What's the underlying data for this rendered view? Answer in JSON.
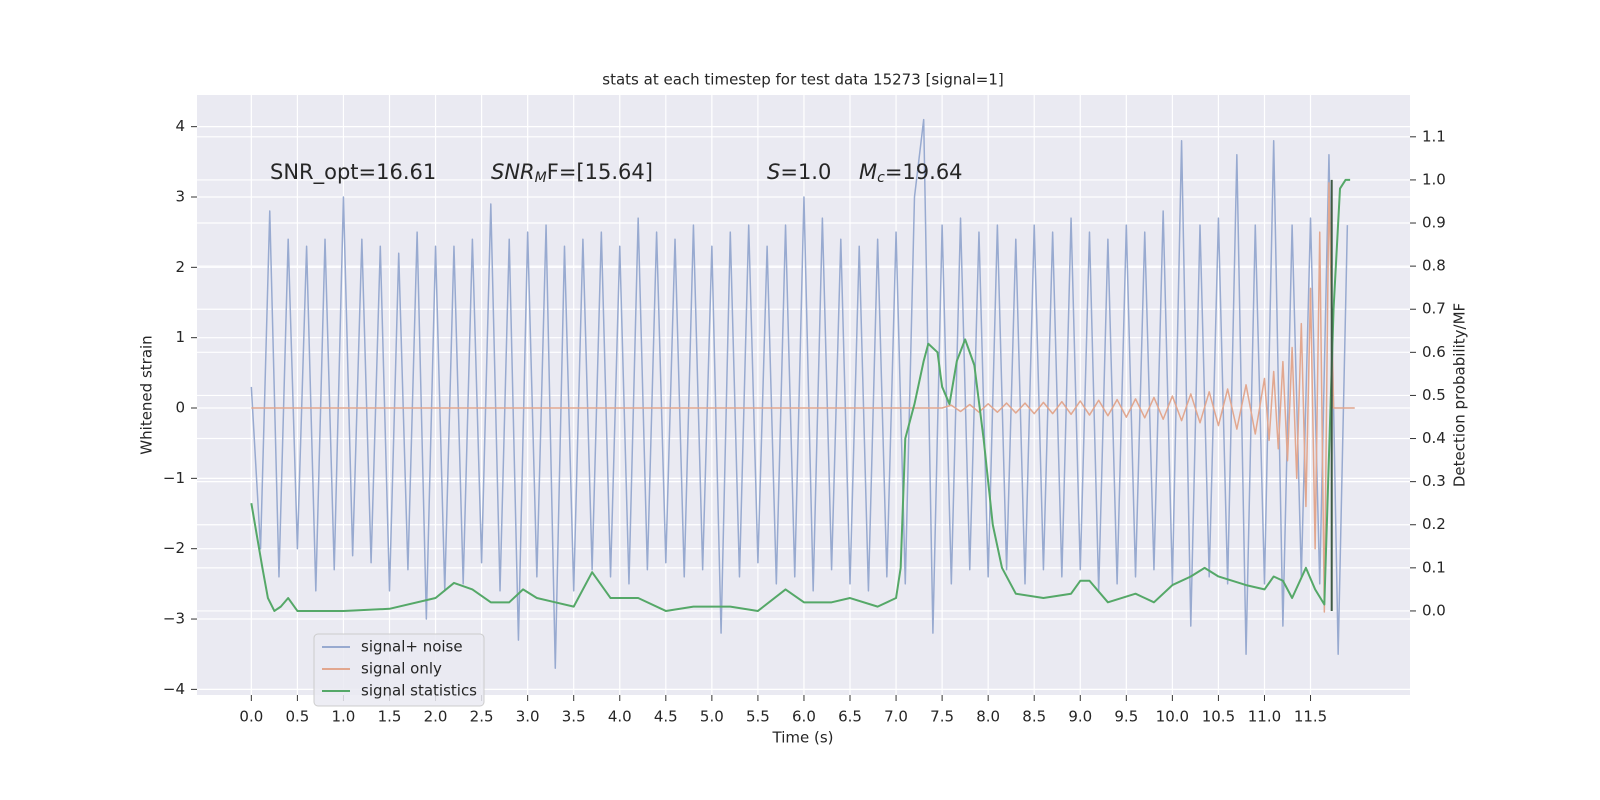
{
  "chart_data": {
    "type": "line",
    "title": "stats at each timestep for test data 15273 [signal=1]",
    "xlabel": "Time (s)",
    "ylabel": "Whitened strain",
    "y2label": "Detection probability/MF",
    "xlim": [
      -0.59,
      12.58
    ],
    "ylim": [
      -4.08,
      4.45
    ],
    "y2lim": [
      -0.195,
      1.197
    ],
    "xticks": [
      {
        "value": 0,
        "label": "0.0"
      },
      0.5,
      {
        "value": 1,
        "label": "1.0"
      },
      1.5,
      {
        "value": 2,
        "label": "2.0"
      },
      2.5,
      {
        "value": 3,
        "label": "3.0"
      },
      3.5,
      {
        "value": 4,
        "label": "4.0"
      },
      4.5,
      {
        "value": 5,
        "label": "5.0"
      },
      5.5,
      {
        "value": 6,
        "label": "6.0"
      },
      6.5,
      {
        "value": 7,
        "label": "7.0"
      },
      7.5,
      {
        "value": 8,
        "label": "8.0"
      },
      8.5,
      {
        "value": 9,
        "label": "9.0"
      },
      9.5,
      {
        "value": 10,
        "label": "10.0"
      },
      10.5,
      {
        "value": 11,
        "label": "11.0"
      },
      11.5
    ],
    "yticks": [
      {
        "value": -4,
        "label": "−4"
      },
      {
        "value": -3,
        "label": "−3"
      },
      {
        "value": -2,
        "label": "−2"
      },
      {
        "value": -1,
        "label": "−1"
      },
      0,
      1,
      2,
      3,
      4
    ],
    "y2ticks": [
      {
        "value": 0,
        "label": "0.0"
      },
      0.1,
      0.2,
      0.3,
      0.4,
      0.5,
      0.6,
      0.7,
      0.8,
      0.9,
      {
        "value": 1,
        "label": "1.0"
      },
      1.1
    ],
    "grid": true,
    "legend": "lower left",
    "annotations": [
      {
        "text": "SNR_opt=16.61"
      },
      {
        "symbol": "SNR",
        "sub": "M",
        "rest": "F=[15.64]"
      },
      {
        "symbol": "S",
        "rest": "=1.0"
      },
      {
        "symbol": "M",
        "sub": "c",
        "rest": "=19.64"
      }
    ],
    "series": [
      {
        "name": "signal+ noise",
        "color": "#98aad0",
        "x": [
          0,
          0.1,
          0.2,
          0.3,
          0.4,
          0.5,
          0.6,
          0.7,
          0.8,
          0.9,
          1,
          1.1,
          1.2,
          1.3,
          1.4,
          1.5,
          1.6,
          1.7,
          1.8,
          1.9,
          2,
          2.1,
          2.2,
          2.3,
          2.4,
          2.5,
          2.6,
          2.7,
          2.8,
          2.9,
          3,
          3.1,
          3.2,
          3.3,
          3.4,
          3.5,
          3.6,
          3.7,
          3.8,
          3.9,
          4,
          4.1,
          4.2,
          4.3,
          4.4,
          4.5,
          4.6,
          4.7,
          4.8,
          4.9,
          5,
          5.1,
          5.2,
          5.3,
          5.4,
          5.5,
          5.6,
          5.7,
          5.8,
          5.9,
          6,
          6.1,
          6.2,
          6.3,
          6.4,
          6.5,
          6.6,
          6.7,
          6.8,
          6.9,
          7,
          7.1,
          7.2,
          7.3,
          7.4,
          7.5,
          7.6,
          7.7,
          7.8,
          7.9,
          8,
          8.1,
          8.2,
          8.3,
          8.4,
          8.5,
          8.6,
          8.7,
          8.8,
          8.9,
          9,
          9.1,
          9.2,
          9.3,
          9.4,
          9.5,
          9.6,
          9.7,
          9.8,
          9.9,
          10,
          10.1,
          10.2,
          10.3,
          10.4,
          10.5,
          10.6,
          10.7,
          10.8,
          10.9,
          11,
          11.1,
          11.2,
          11.3,
          11.4,
          11.5,
          11.6,
          11.7,
          11.8,
          11.9
        ],
        "values": [
          0.3,
          -2.0,
          2.8,
          -2.4,
          2.4,
          -2.0,
          2.3,
          -2.6,
          2.4,
          -2.3,
          3.0,
          -2.1,
          2.4,
          -2.2,
          2.3,
          -2.6,
          2.2,
          -2.3,
          2.5,
          -3.0,
          2.3,
          -2.6,
          2.3,
          -2.5,
          2.4,
          -2.2,
          2.9,
          -2.6,
          2.4,
          -3.3,
          2.5,
          -2.4,
          2.6,
          -3.7,
          2.3,
          -2.6,
          2.4,
          -2.3,
          2.5,
          -2.4,
          2.3,
          -2.5,
          2.7,
          -2.3,
          2.5,
          -2.2,
          2.4,
          -2.4,
          2.6,
          -2.3,
          2.3,
          -3.2,
          2.5,
          -2.4,
          2.6,
          -2.2,
          2.3,
          -2.5,
          2.6,
          -2.4,
          3.0,
          -2.6,
          2.7,
          -2.3,
          2.4,
          -2.5,
          2.3,
          -2.6,
          2.4,
          -2.4,
          2.5,
          -2.5,
          3.0,
          4.1,
          -3.2,
          2.6,
          -2.5,
          2.7,
          -2.3,
          2.5,
          -2.4,
          2.6,
          -2.3,
          2.4,
          -2.5,
          2.6,
          -2.3,
          2.5,
          -2.4,
          2.7,
          -2.3,
          2.5,
          -2.6,
          2.4,
          -2.5,
          2.6,
          -2.4,
          2.5,
          -2.3,
          2.8,
          -2.5,
          3.8,
          -3.1,
          2.6,
          -2.4,
          2.7,
          -2.5,
          3.6,
          -3.5,
          2.6,
          -2.5,
          3.8,
          -3.1,
          2.6,
          -2.4,
          2.7,
          -2.5,
          3.6,
          -3.5,
          2.6
        ]
      },
      {
        "name": "signal only",
        "color": "#e2a78f",
        "x": [
          0,
          7.5,
          7.6,
          7.7,
          7.8,
          7.9,
          8,
          8.1,
          8.2,
          8.3,
          8.4,
          8.5,
          8.6,
          8.7,
          8.8,
          8.9,
          9,
          9.1,
          9.2,
          9.3,
          9.4,
          9.5,
          9.6,
          9.7,
          9.8,
          9.9,
          10,
          10.1,
          10.2,
          10.3,
          10.4,
          10.5,
          10.6,
          10.7,
          10.8,
          10.9,
          11,
          11.05,
          11.1,
          11.15,
          11.2,
          11.25,
          11.3,
          11.35,
          11.4,
          11.45,
          11.5,
          11.55,
          11.6,
          11.65,
          11.7,
          11.75,
          11.98
        ],
        "values": [
          0,
          0,
          0.04,
          -0.05,
          0.05,
          -0.06,
          0.06,
          -0.06,
          0.07,
          -0.07,
          0.07,
          -0.08,
          0.08,
          -0.08,
          0.09,
          -0.09,
          0.1,
          -0.1,
          0.11,
          -0.11,
          0.12,
          -0.13,
          0.13,
          -0.14,
          0.15,
          -0.16,
          0.17,
          -0.18,
          0.2,
          -0.21,
          0.23,
          -0.25,
          0.27,
          -0.3,
          0.33,
          -0.37,
          0.42,
          -0.46,
          0.52,
          -0.58,
          0.66,
          -0.75,
          0.86,
          -1.0,
          1.2,
          -1.4,
          1.7,
          -2.0,
          2.5,
          -2.9,
          3.2,
          0,
          0
        ]
      },
      {
        "name": "signal statistics",
        "color": "#55a868",
        "axis": "y2",
        "x": [
          0,
          0.12,
          0.18,
          0.25,
          0.32,
          0.4,
          0.5,
          0.6,
          1.0,
          1.5,
          2.0,
          2.2,
          2.4,
          2.6,
          2.8,
          2.95,
          3.1,
          3.3,
          3.5,
          3.7,
          3.9,
          4.2,
          4.5,
          4.8,
          5.2,
          5.5,
          5.8,
          6.0,
          6.3,
          6.5,
          6.8,
          7.0,
          7.05,
          7.1,
          7.2,
          7.3,
          7.35,
          7.45,
          7.5,
          7.58,
          7.66,
          7.75,
          7.85,
          7.95,
          8.05,
          8.15,
          8.3,
          8.6,
          8.9,
          9.0,
          9.1,
          9.3,
          9.6,
          9.8,
          10.0,
          10.2,
          10.35,
          10.5,
          10.8,
          11.0,
          11.1,
          11.2,
          11.3,
          11.45,
          11.55,
          11.65,
          11.75,
          11.82,
          11.88,
          11.93
        ],
        "values": [
          0.25,
          0.1,
          0.03,
          0.0,
          0.01,
          0.03,
          0.0,
          0.0,
          0.0,
          0.005,
          0.03,
          0.065,
          0.05,
          0.02,
          0.02,
          0.05,
          0.03,
          0.02,
          0.01,
          0.09,
          0.03,
          0.03,
          0.0,
          0.01,
          0.01,
          0.0,
          0.05,
          0.02,
          0.02,
          0.03,
          0.01,
          0.03,
          0.1,
          0.4,
          0.48,
          0.58,
          0.62,
          0.6,
          0.52,
          0.48,
          0.58,
          0.63,
          0.57,
          0.4,
          0.2,
          0.1,
          0.04,
          0.03,
          0.04,
          0.07,
          0.07,
          0.02,
          0.04,
          0.02,
          0.06,
          0.08,
          0.1,
          0.08,
          0.06,
          0.05,
          0.08,
          0.07,
          0.03,
          0.1,
          0.05,
          0.015,
          0.7,
          0.98,
          1.0,
          1.0
        ]
      }
    ],
    "vlines": [
      {
        "x": 11.73,
        "ymin": 0,
        "ymax": 1,
        "axis": "y2",
        "color": "#3f5a45"
      }
    ]
  }
}
